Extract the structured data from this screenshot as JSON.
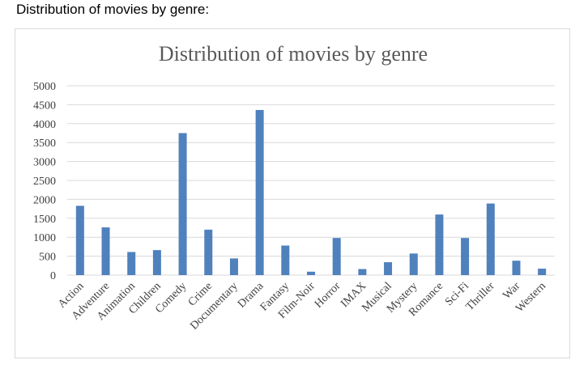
{
  "page": {
    "caption": "Distribution of movies by genre:"
  },
  "colors": {
    "bar": "#4f81bd",
    "grid": "#d9d9d9",
    "title": "#595959",
    "tick": "#404040"
  },
  "chart_data": {
    "type": "bar",
    "title": "Distribution of movies by genre",
    "xlabel": "",
    "ylabel": "",
    "ylim": [
      0,
      5000
    ],
    "yticks": [
      0,
      500,
      1000,
      1500,
      2000,
      2500,
      3000,
      3500,
      4000,
      4500,
      5000
    ],
    "grid": true,
    "legend": "none",
    "categories": [
      "Action",
      "Adventure",
      "Animation",
      "Children",
      "Comedy",
      "Crime",
      "Documentary",
      "Drama",
      "Fantasy",
      "Film-Noir",
      "Horror",
      "IMAX",
      "Musical",
      "Mystery",
      "Romance",
      "Sci-Fi",
      "Thriller",
      "War",
      "Western"
    ],
    "values": [
      1830,
      1260,
      610,
      660,
      3750,
      1200,
      440,
      4360,
      780,
      90,
      980,
      160,
      340,
      570,
      1600,
      980,
      1890,
      380,
      170
    ]
  }
}
